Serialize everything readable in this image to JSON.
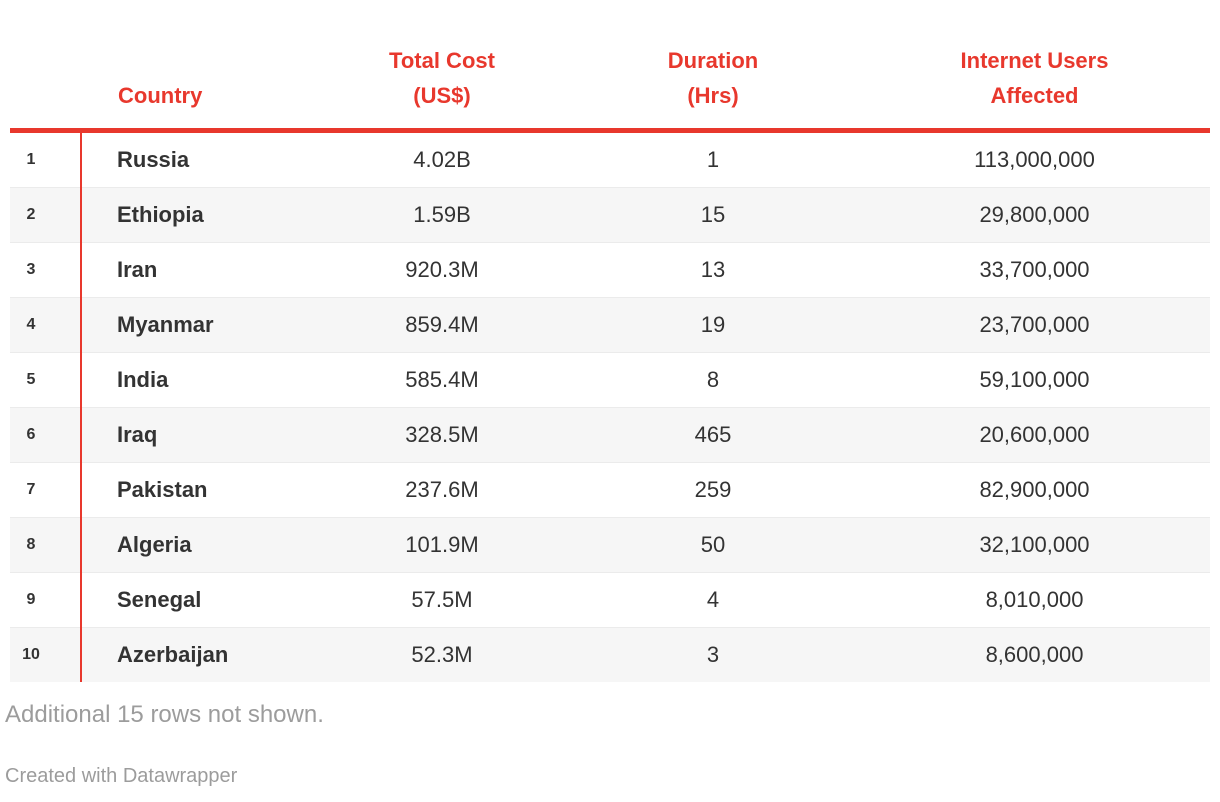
{
  "chart_data": {
    "type": "table",
    "columns": [
      "#",
      "Country",
      "Total Cost (US$)",
      "Duration (Hrs)",
      "Internet Users Affected"
    ],
    "rows": [
      [
        "1",
        "Russia",
        "4.02B",
        "1",
        "113,000,000"
      ],
      [
        "2",
        "Ethiopia",
        "1.59B",
        "15",
        "29,800,000"
      ],
      [
        "3",
        "Iran",
        "920.3M",
        "13",
        "33,700,000"
      ],
      [
        "4",
        "Myanmar",
        "859.4M",
        "19",
        "23,700,000"
      ],
      [
        "5",
        "India",
        "585.4M",
        "8",
        "59,100,000"
      ],
      [
        "6",
        "Iraq",
        "328.5M",
        "465",
        "20,600,000"
      ],
      [
        "7",
        "Pakistan",
        "237.6M",
        "259",
        "82,900,000"
      ],
      [
        "8",
        "Algeria",
        "101.9M",
        "50",
        "32,100,000"
      ],
      [
        "9",
        "Senegal",
        "57.5M",
        "4",
        "8,010,000"
      ],
      [
        "10",
        "Azerbaijan",
        "52.3M",
        "3",
        "8,600,000"
      ]
    ],
    "layout_hints": {
      "striped_rows": "even",
      "header_text_color": "#e8382d",
      "accent_rule_color": "#e8382d"
    }
  },
  "header_display": {
    "country": "Country",
    "cost_line1": "Total Cost",
    "cost_line2": "(US$)",
    "duration_line1": "Duration",
    "duration_line2": "(Hrs)",
    "users_line1": "Internet Users",
    "users_line2": "Affected"
  },
  "footer": {
    "note": "Additional 15 rows not shown.",
    "credit": "Created with Datawrapper"
  },
  "colors": {
    "accent_red": "#e8382d",
    "body_text": "#333333",
    "stripe": "#f6f6f6",
    "row_border": "#ebebeb",
    "muted_text": "#9c9c9c"
  }
}
